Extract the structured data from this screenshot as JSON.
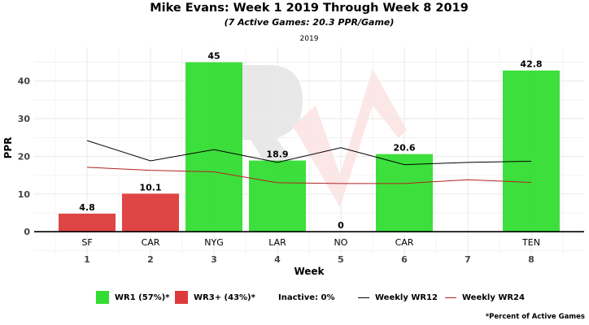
{
  "titles": {
    "main": "Mike Evans: Week 1 2019 Through Week 8 2019",
    "subtitle": "(7 Active Games: 20.3 PPR/Game)",
    "season": "2019"
  },
  "colors": {
    "wr1": "#33dd33",
    "wr3": "#dd3b3b",
    "wr12_line": "#000000",
    "wr24_line": "#b22222",
    "axis": "#000000",
    "grid": "#ebebeb"
  },
  "chart_data": {
    "type": "bar",
    "title": "Mike Evans: Week 1 2019 Through Week 8 2019",
    "subtitle": "(7 Active Games: 20.3 PPR/Game)",
    "xlabel": "Week",
    "ylabel": "PPR",
    "ylim": [
      -6,
      49
    ],
    "yticks": [
      0,
      10,
      20,
      30,
      40
    ],
    "weeks": [
      "1",
      "2",
      "3",
      "4",
      "5",
      "6",
      "7",
      "8"
    ],
    "opponents": [
      "SF",
      "CAR",
      "NYG",
      "LAR",
      "NO",
      "CAR",
      "",
      "TEN"
    ],
    "bars": [
      {
        "week": 1,
        "value": 4.8,
        "label": "4.8",
        "tier": "wr3"
      },
      {
        "week": 2,
        "value": 10.1,
        "label": "10.1",
        "tier": "wr3"
      },
      {
        "week": 3,
        "value": 45,
        "label": "45",
        "tier": "wr1"
      },
      {
        "week": 4,
        "value": 18.9,
        "label": "18.9",
        "tier": "wr1"
      },
      {
        "week": 5,
        "value": 0,
        "label": "0",
        "tier": "wr3"
      },
      {
        "week": 6,
        "value": 20.6,
        "label": "20.6",
        "tier": "wr1"
      },
      {
        "week": 8,
        "value": 42.8,
        "label": "42.8",
        "tier": "wr1"
      }
    ],
    "series": [
      {
        "name": "Weekly WR12",
        "x": [
          1,
          2,
          3,
          4,
          5,
          6,
          7,
          8
        ],
        "values": [
          24.2,
          18.8,
          21.8,
          18.4,
          22.3,
          17.8,
          18.4,
          18.7
        ]
      },
      {
        "name": "Weekly WR24",
        "x": [
          1,
          2,
          3,
          4,
          5,
          6,
          7,
          8
        ],
        "values": [
          17.1,
          16.3,
          15.9,
          13.0,
          12.8,
          12.8,
          13.8,
          13.1
        ]
      }
    ],
    "grid": true,
    "legend_position": "bottom"
  },
  "legend": {
    "wr1": "WR1 (57%)*",
    "wr3": "WR3+ (43%)*",
    "inactive": "Inactive: 0%",
    "wr12": "Weekly WR12",
    "wr24": "Weekly WR24"
  },
  "footnote": "*Percent of Active Games"
}
